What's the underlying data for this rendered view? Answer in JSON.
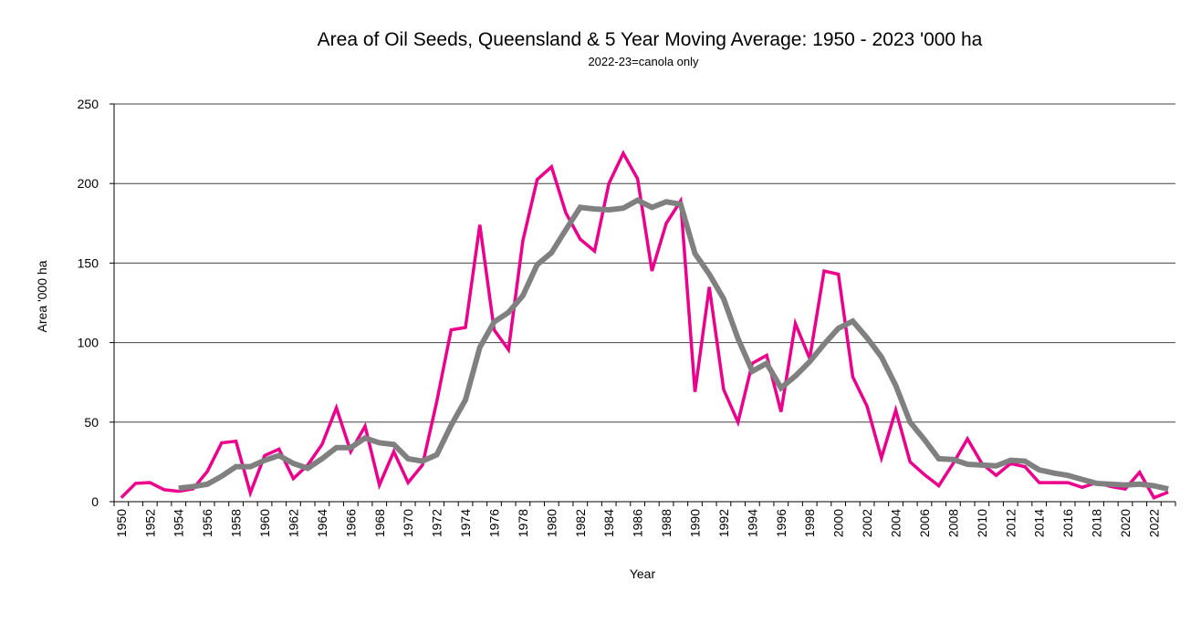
{
  "chart_data": {
    "type": "line",
    "title": "Area of Oil Seeds, Queensland & 5 Year Moving Average: 1950 - 2023 '000 ha",
    "subtitle": "2022-23=canola only",
    "xlabel": "Year",
    "ylabel": "Area '000 ha",
    "ylim": [
      0,
      250
    ],
    "yticks": [
      "0",
      "50",
      "100",
      "150",
      "200",
      "250"
    ],
    "ytick_values": [
      0,
      50,
      100,
      150,
      200,
      250
    ],
    "grid": "horizontal",
    "legend": "none",
    "x": [
      1950,
      1951,
      1952,
      1953,
      1954,
      1955,
      1956,
      1957,
      1958,
      1959,
      1960,
      1961,
      1962,
      1963,
      1964,
      1965,
      1966,
      1967,
      1968,
      1969,
      1970,
      1971,
      1972,
      1973,
      1974,
      1975,
      1976,
      1977,
      1978,
      1979,
      1980,
      1981,
      1982,
      1983,
      1984,
      1985,
      1986,
      1987,
      1988,
      1989,
      1990,
      1991,
      1992,
      1993,
      1994,
      1995,
      1996,
      1997,
      1998,
      1999,
      2000,
      2001,
      2002,
      2003,
      2004,
      2005,
      2006,
      2007,
      2008,
      2009,
      2010,
      2011,
      2012,
      2013,
      2014,
      2015,
      2016,
      2017,
      2018,
      2019,
      2020,
      2021,
      2022,
      2023
    ],
    "xtick_labels": [
      "1950",
      "1952",
      "1954",
      "1956",
      "1958",
      "1960",
      "1962",
      "1964",
      "1966",
      "1968",
      "1970",
      "1972",
      "1974",
      "1976",
      "1978",
      "1980",
      "1982",
      "1984",
      "1986",
      "1988",
      "1990",
      "1992",
      "1994",
      "1996",
      "1998",
      "2000",
      "2002",
      "2004",
      "2006",
      "2008",
      "2010",
      "2012",
      "2014",
      "2016",
      "2018",
      "2020",
      "2022"
    ],
    "series": [
      {
        "name": "Area of Oil Seeds",
        "color": "#EC008C",
        "values": [
          2.5,
          11.5,
          12,
          7.5,
          6.5,
          8,
          19,
          37,
          38,
          5.5,
          29,
          33,
          14.5,
          23,
          36,
          59,
          31.5,
          47.5,
          10.5,
          31.5,
          12,
          23,
          63,
          108,
          109.5,
          174,
          108,
          95.5,
          164,
          202.5,
          210.5,
          181.5,
          165,
          157.5,
          200,
          219,
          203,
          145,
          175,
          189,
          69,
          135,
          70.5,
          50,
          87,
          92,
          56.5,
          112,
          90,
          145,
          143,
          78.5,
          60,
          27.5,
          57.5,
          25,
          17,
          10,
          24,
          39.5,
          24,
          16.5,
          24,
          22,
          12,
          12,
          12,
          9,
          12,
          9.5,
          8,
          18.5,
          2.5,
          6
        ]
      },
      {
        "name": "5 Year Moving Average",
        "color": "#808080",
        "values": [
          null,
          null,
          null,
          null,
          8.5,
          9.5,
          11,
          16,
          22,
          22,
          26,
          29,
          24,
          21,
          27,
          34,
          34,
          40,
          37,
          36,
          27,
          25.5,
          29.5,
          48,
          64,
          97,
          113,
          119,
          129.5,
          149,
          156.5,
          171,
          185,
          184,
          183.5,
          184.5,
          189.5,
          185,
          188.5,
          187,
          156,
          143,
          127.5,
          102.5,
          82,
          87,
          71.5,
          79,
          88,
          99,
          109,
          113.5,
          103,
          91,
          73,
          50,
          39,
          27,
          26.5,
          23.5,
          23,
          22.5,
          26,
          25.5,
          20,
          18,
          16.5,
          14,
          11.5,
          11,
          10.5,
          11,
          10,
          8
        ]
      }
    ]
  }
}
